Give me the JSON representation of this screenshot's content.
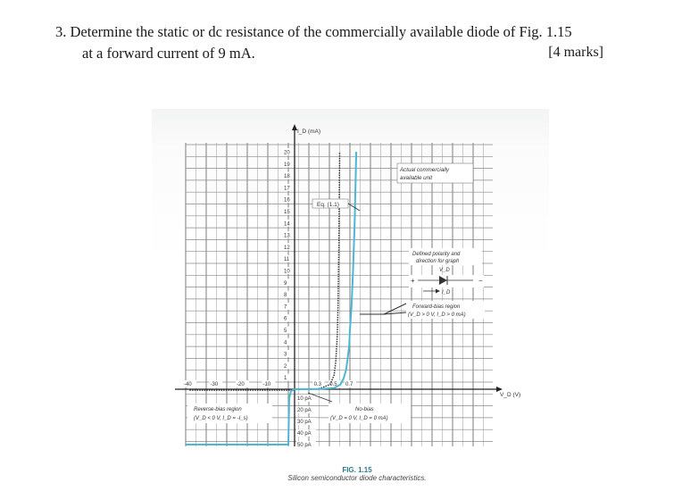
{
  "question": {
    "number": "3.",
    "line1": "Determine the static or dc resistance of the commercially available diode of Fig. 1.15",
    "line2": "at a forward current of 9 mA.",
    "marks": "[4 marks]"
  },
  "figure": {
    "y_axis_label": "I_D (mA)",
    "x_axis_label": "V_D (V)",
    "y_ticks": [
      "20",
      "19",
      "18",
      "17",
      "16",
      "15",
      "14",
      "13",
      "12",
      "11",
      "10",
      "9",
      "8",
      "7",
      "6",
      "5",
      "4",
      "3",
      "2",
      "1"
    ],
    "x_ticks_pos": [
      "0.3",
      "0.5",
      "0.7"
    ],
    "x_ticks_neg": [
      "-40",
      "-30",
      "-20",
      "-10"
    ],
    "reverse_ticks": [
      "10 pA",
      "20 pA",
      "30 pA",
      "40 pA",
      "50 pA"
    ],
    "labels": {
      "equation": "Eq. (1.1)",
      "actual_unit_1": "Actual commercially",
      "actual_unit_2": "available unit",
      "defined_polarity_1": "Defined polarity and",
      "defined_polarity_2": "direction for graph",
      "vd_symbol": "V_D",
      "id_symbol": "I_D",
      "forward_bias_1": "Forward-bias region",
      "forward_bias_2": "(V_D > 0 V, I_D > 0 mA)",
      "reverse_bias_1": "Reverse-bias region",
      "reverse_bias_2": "(V_D < 0 V, I_D = -I_s)",
      "no_bias_1": "No-bias",
      "no_bias_2": "(V_D = 0 V, I_D = 0 mA)"
    },
    "caption_number": "FIG. 1.15",
    "caption_text": "Silicon semiconductor diode characteristics.",
    "curve_color": "#4bb7d3",
    "ideal_curve_color": "#333333"
  },
  "chart_data": {
    "type": "line",
    "xlabel": "V_D (V)",
    "ylabel": "I_D (mA)",
    "xlim_forward": [
      0,
      0.8
    ],
    "ylim": [
      0,
      20
    ],
    "series": [
      {
        "name": "Actual commercially available unit",
        "x": [
          0,
          0.3,
          0.5,
          0.58,
          0.62,
          0.65,
          0.67,
          0.69,
          0.7,
          0.72,
          0.74,
          0.76,
          0.78
        ],
        "y": [
          0,
          0.02,
          0.1,
          0.4,
          0.9,
          1.6,
          2.5,
          3.6,
          5.0,
          7.0,
          10.0,
          14.0,
          20.0
        ]
      },
      {
        "name": "Eq. (1.1)",
        "x": [
          0,
          0.3,
          0.45,
          0.5,
          0.52,
          0.54,
          0.55,
          0.56,
          0.57
        ],
        "y": [
          0,
          0.02,
          0.4,
          1.2,
          2.3,
          4.5,
          7.0,
          12.0,
          20.0
        ]
      }
    ]
  }
}
